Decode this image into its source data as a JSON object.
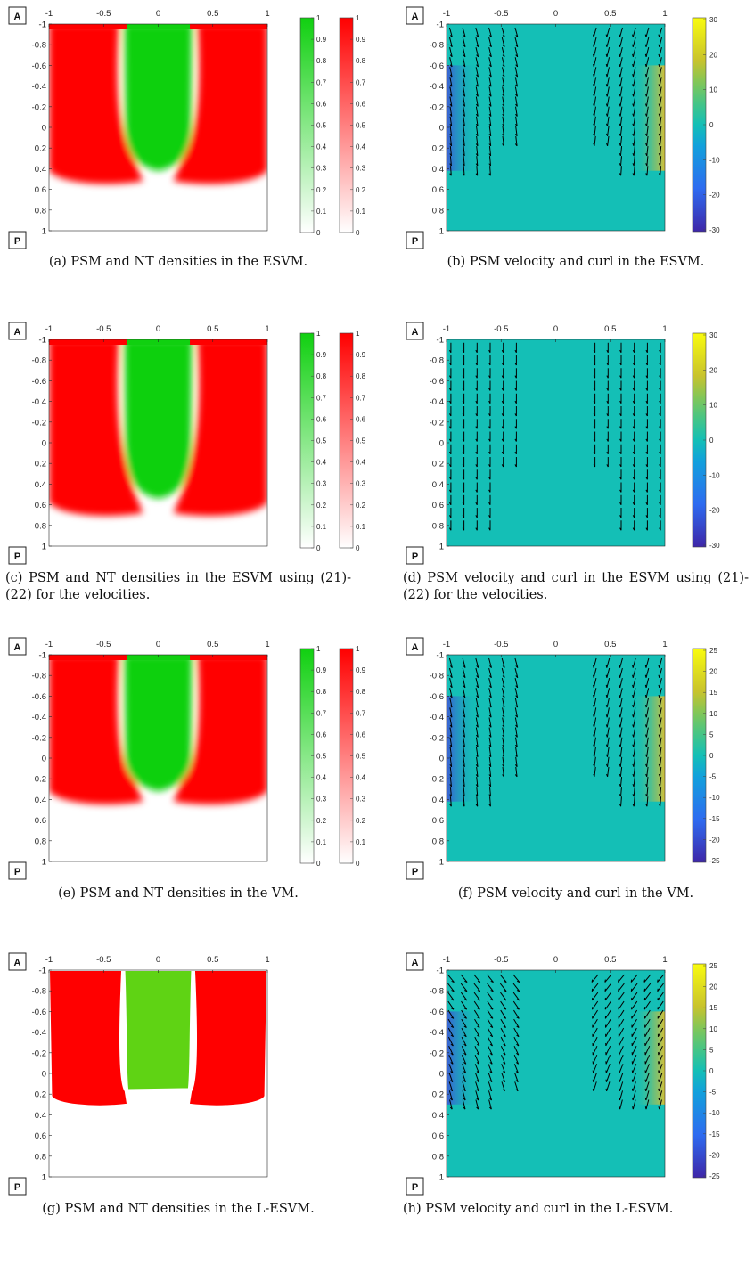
{
  "figure": {
    "panels": [
      {
        "id": "a",
        "kind": "density",
        "region_label_top": "A",
        "region_label_bottom": "P",
        "x_ticks": [
          "-1",
          "-0.5",
          "0",
          "0.5",
          "1"
        ],
        "y_ticks": [
          "-1",
          "-0.8",
          "-0.6",
          "-0.4",
          "-0.2",
          "0",
          "0.2",
          "0.4",
          "0.6",
          "0.8",
          "1"
        ],
        "colorbars": [
          {
            "name": "NT",
            "color": "#10d010",
            "ticks": [
              "1",
              "0.9",
              "0.8",
              "0.7",
              "0.6",
              "0.5",
              "0.4",
              "0.3",
              "0.2",
              "0.1",
              "0"
            ]
          },
          {
            "name": "PSM",
            "color": "#ff0000",
            "ticks": [
              "1",
              "0.9",
              "0.8",
              "0.7",
              "0.6",
              "0.5",
              "0.4",
              "0.3",
              "0.2",
              "0.1",
              "0"
            ]
          }
        ],
        "caption": "(a) PSM and NT densities in the ESVM."
      },
      {
        "id": "b",
        "kind": "velocity",
        "region_label_top": "A",
        "region_label_bottom": "P",
        "x_ticks": [
          "-1",
          "-0.5",
          "0",
          "0.5",
          "1"
        ],
        "y_ticks": [
          "-1",
          "-0.8",
          "-0.6",
          "-0.4",
          "-0.2",
          "0",
          "0.2",
          "0.4",
          "0.6",
          "0.8",
          "1"
        ],
        "colorbar_ticks": [
          "30",
          "20",
          "10",
          "0",
          "-10",
          "-20",
          "-30"
        ],
        "caption": "(b) PSM velocity and curl in the ESVM."
      },
      {
        "id": "c",
        "kind": "density",
        "region_label_top": "A",
        "region_label_bottom": "P",
        "x_ticks": [
          "-1",
          "-0.5",
          "0",
          "0.5",
          "1"
        ],
        "y_ticks": [
          "-1",
          "-0.8",
          "-0.6",
          "-0.4",
          "-0.2",
          "0",
          "0.2",
          "0.4",
          "0.6",
          "0.8",
          "1"
        ],
        "colorbars": [
          {
            "name": "NT",
            "color": "#10d010",
            "ticks": [
              "1",
              "0.9",
              "0.8",
              "0.7",
              "0.6",
              "0.5",
              "0.4",
              "0.3",
              "0.2",
              "0.1",
              "0"
            ]
          },
          {
            "name": "PSM",
            "color": "#ff0000",
            "ticks": [
              "1",
              "0.9",
              "0.8",
              "0.7",
              "0.6",
              "0.5",
              "0.4",
              "0.3",
              "0.2",
              "0.1",
              "0"
            ]
          }
        ],
        "caption": "(c) PSM and NT densities in the ESVM using (21)-(22) for the velocities."
      },
      {
        "id": "d",
        "kind": "velocity",
        "region_label_top": "A",
        "region_label_bottom": "P",
        "x_ticks": [
          "-1",
          "-0.5",
          "0",
          "0.5",
          "1"
        ],
        "y_ticks": [
          "-1",
          "-0.8",
          "-0.6",
          "-0.4",
          "-0.2",
          "0",
          "0.2",
          "0.4",
          "0.6",
          "0.8",
          "1"
        ],
        "colorbar_ticks": [
          "30",
          "20",
          "10",
          "0",
          "-10",
          "-20",
          "-30"
        ],
        "caption": "(d) PSM velocity and curl in the ESVM using (21)-(22) for the velocities."
      },
      {
        "id": "e",
        "kind": "density",
        "region_label_top": "A",
        "region_label_bottom": "P",
        "x_ticks": [
          "-1",
          "-0.5",
          "0",
          "0.5",
          "1"
        ],
        "y_ticks": [
          "-1",
          "-0.8",
          "-0.6",
          "-0.4",
          "-0.2",
          "0",
          "0.2",
          "0.4",
          "0.6",
          "0.8",
          "1"
        ],
        "colorbars": [
          {
            "name": "NT",
            "color": "#10d010",
            "ticks": [
              "1",
              "0.9",
              "0.8",
              "0.7",
              "0.6",
              "0.5",
              "0.4",
              "0.3",
              "0.2",
              "0.1",
              "0"
            ]
          },
          {
            "name": "PSM",
            "color": "#ff0000",
            "ticks": [
              "1",
              "0.9",
              "0.8",
              "0.7",
              "0.6",
              "0.5",
              "0.4",
              "0.3",
              "0.2",
              "0.1",
              "0"
            ]
          }
        ],
        "caption": "(e) PSM and NT densities in the VM."
      },
      {
        "id": "f",
        "kind": "velocity",
        "region_label_top": "A",
        "region_label_bottom": "P",
        "x_ticks": [
          "-1",
          "-0.5",
          "0",
          "0.5",
          "1"
        ],
        "y_ticks": [
          "-1",
          "-0.8",
          "-0.6",
          "-0.4",
          "-0.2",
          "0",
          "0.2",
          "0.4",
          "0.6",
          "0.8",
          "1"
        ],
        "colorbar_ticks": [
          "25",
          "20",
          "15",
          "10",
          "5",
          "0",
          "-5",
          "-10",
          "-15",
          "-20",
          "-25"
        ],
        "caption": "(f) PSM velocity and curl in the VM."
      },
      {
        "id": "g",
        "kind": "sharp",
        "region_label_top": "A",
        "region_label_bottom": "P",
        "x_ticks": [
          "-1",
          "-0.5",
          "0",
          "0.5",
          "1"
        ],
        "y_ticks": [
          "-1",
          "-0.8",
          "-0.6",
          "-0.4",
          "-0.2",
          "0",
          "0.2",
          "0.4",
          "0.6",
          "0.8",
          "1"
        ],
        "caption": "(g) PSM and NT densities in the L-ESVM."
      },
      {
        "id": "h",
        "kind": "velocity",
        "region_label_top": "A",
        "region_label_bottom": "P",
        "x_ticks": [
          "-1",
          "-0.5",
          "0",
          "0.5",
          "1"
        ],
        "y_ticks": [
          "-1",
          "-0.8",
          "-0.6",
          "-0.4",
          "-0.2",
          "0",
          "0.2",
          "0.4",
          "0.6",
          "0.8",
          "1"
        ],
        "colorbar_ticks": [
          "25",
          "20",
          "15",
          "10",
          "5",
          "0",
          "-5",
          "-10",
          "-15",
          "-20",
          "-25"
        ],
        "caption": "(h) PSM velocity and curl in the L-ESVM."
      }
    ],
    "colors": {
      "psm": "#ff0000",
      "nt": "#10d010",
      "nt_sharp": "#5fd314",
      "curl_background": "#14bfb6",
      "arrow": "#000000"
    }
  }
}
